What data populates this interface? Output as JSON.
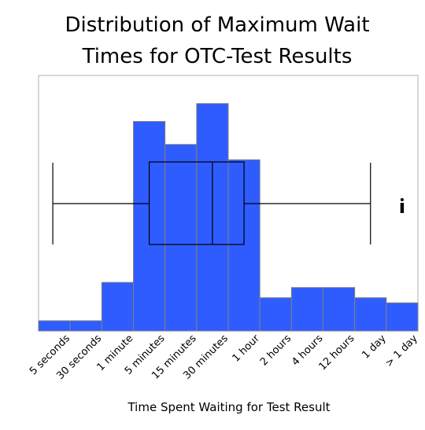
{
  "chart_data": {
    "type": "bar",
    "title": "Distribution of Maximum Wait Times for OTC-Test Results",
    "xlabel": "Time Spent Waiting for Test Result",
    "ylabel": "",
    "categories": [
      "5 seconds",
      "30 seconds",
      "1 minute",
      "5 minutes",
      "15 minutes",
      "30 minutes",
      "1 hour",
      "2 hours",
      "4 hours",
      "12 hours",
      "1 day",
      "> 1 day"
    ],
    "values": [
      4,
      4,
      19,
      82,
      73,
      89,
      67,
      13,
      17,
      17,
      13,
      11
    ],
    "ylim": [
      0,
      100
    ],
    "grid": false,
    "legend": "none",
    "bar_color": "#2e5cff",
    "bar_edge_color": "#808080",
    "boxplot": {
      "whisker_low": 0.45,
      "q1": 3.5,
      "median": 5.5,
      "q3": 6.5,
      "whisker_high": 10.5,
      "outliers": [
        11.5
      ]
    }
  }
}
